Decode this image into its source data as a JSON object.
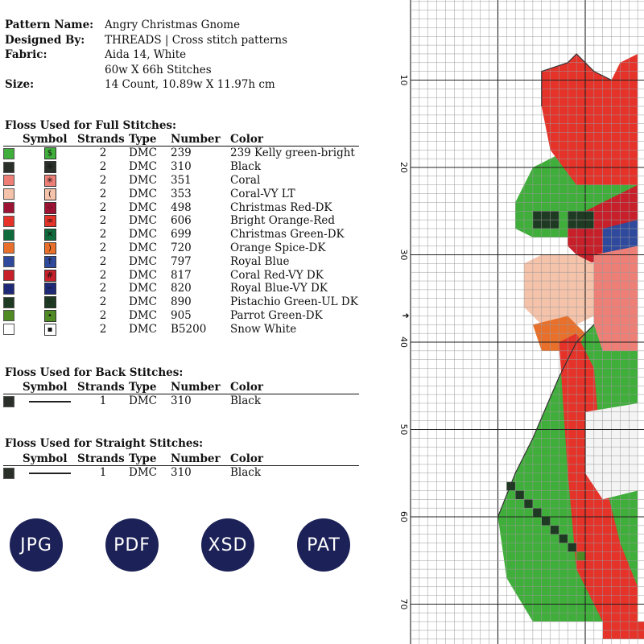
{
  "pattern_info": [
    {
      "label": "Pattern Name:",
      "value": "Angry Christmas Gnome"
    },
    {
      "label": "Designed By:",
      "value": "THREADS | Cross stitch patterns"
    },
    {
      "label": "Fabric:",
      "value": "Aida 14, White"
    },
    {
      "label": "",
      "value": "60w X 66h Stitches"
    },
    {
      "label": "Size:",
      "value": "14 Count,    10.89w X 11.97h cm"
    }
  ],
  "full_stitches": {
    "title": "Floss Used for Full Stitches:",
    "headers": [
      "Symbol",
      "Strands",
      "Type",
      "Number",
      "Color"
    ],
    "rows": [
      {
        "color": "#3fae3a",
        "symbol": "$",
        "strands": "2",
        "type": "DMC",
        "number": "239",
        "name": "239 Kelly green-bright"
      },
      {
        "color": "#2a2f2a",
        "symbol": "⁜",
        "strands": "2",
        "type": "DMC",
        "number": "310",
        "name": "Black"
      },
      {
        "color": "#ee7f77",
        "symbol": "✳",
        "strands": "2",
        "type": "DMC",
        "number": "351",
        "name": "Coral"
      },
      {
        "color": "#f5c2aa",
        "symbol": "(",
        "strands": "2",
        "type": "DMC",
        "number": "353",
        "name": "Coral-VY LT"
      },
      {
        "color": "#9c1333",
        "symbol": "⁘",
        "strands": "2",
        "type": "DMC",
        "number": "498",
        "name": "Christmas Red-DK"
      },
      {
        "color": "#e5332a",
        "symbol": "∞",
        "strands": "2",
        "type": "DMC",
        "number": "606",
        "name": "Bright Orange-Red"
      },
      {
        "color": "#0f6b3c",
        "symbol": "✕",
        "strands": "2",
        "type": "DMC",
        "number": "699",
        "name": "Christmas Green-DK"
      },
      {
        "color": "#e8702a",
        "symbol": ")",
        "strands": "2",
        "type": "DMC",
        "number": "720",
        "name": "Orange Spice-DK"
      },
      {
        "color": "#2f4a9c",
        "symbol": "↑",
        "strands": "2",
        "type": "DMC",
        "number": "797",
        "name": "Royal Blue"
      },
      {
        "color": "#c8202a",
        "symbol": "#",
        "strands": "2",
        "type": "DMC",
        "number": "817",
        "name": "Coral Red-VY DK"
      },
      {
        "color": "#1e2a78",
        "symbol": "−",
        "strands": "2",
        "type": "DMC",
        "number": "820",
        "name": "Royal Blue-VY DK"
      },
      {
        "color": "#1f3a22",
        "symbol": "⁘",
        "strands": "2",
        "type": "DMC",
        "number": "890",
        "name": "Pistachio Green-UL DK"
      },
      {
        "color": "#4f8a25",
        "symbol": "•",
        "strands": "2",
        "type": "DMC",
        "number": "905",
        "name": "Parrot Green-DK"
      },
      {
        "color": "#ffffff",
        "symbol": "▪",
        "strands": "2",
        "type": "DMC",
        "number": "B5200",
        "name": "Snow White"
      }
    ]
  },
  "back_stitches": {
    "title": "Floss Used for Back Stitches:",
    "headers": [
      "Symbol",
      "Strands",
      "Type",
      "Number",
      "Color"
    ],
    "rows": [
      {
        "color": "#2a2f2a",
        "strands": "1",
        "type": "DMC",
        "number": "310",
        "name": "Black"
      }
    ]
  },
  "straight_stitches": {
    "title": "Floss Used for Straight Stitches:",
    "headers": [
      "Symbol",
      "Strands",
      "Type",
      "Number",
      "Color"
    ],
    "rows": [
      {
        "color": "#2a2f2a",
        "strands": "1",
        "type": "DMC",
        "number": "310",
        "name": "Black"
      }
    ]
  },
  "formats": [
    "JPG",
    "PDF",
    "XSD",
    "PAT"
  ],
  "chart": {
    "row_labels": [
      "10",
      "20",
      "30",
      "40",
      "50",
      "60",
      "70"
    ],
    "center_arrow": "➜"
  }
}
